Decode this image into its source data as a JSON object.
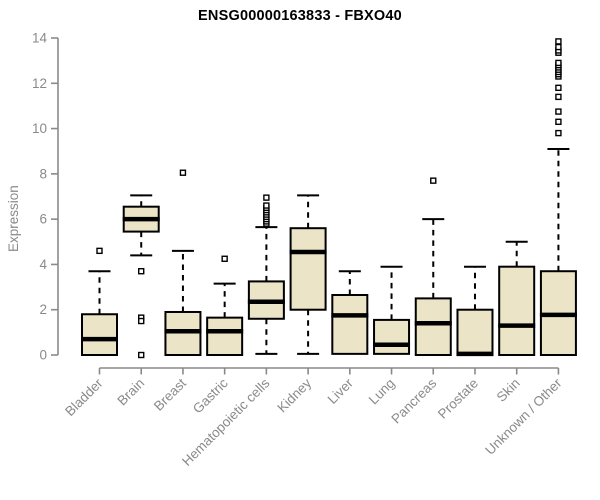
{
  "chart_data": {
    "type": "box",
    "title": "ENSG00000163833 - FBXO40",
    "ylabel": "Expression",
    "ylim": [
      0,
      14
    ],
    "yticks": [
      0,
      2,
      4,
      6,
      8,
      10,
      12,
      14
    ],
    "grid": false,
    "categories": [
      "Bladder",
      "Brain",
      "Breast",
      "Gastric",
      "Hematopoietic cells",
      "Kidney",
      "Liver",
      "Lung",
      "Pancreas",
      "Prostate",
      "Skin",
      "Unknown / Other"
    ],
    "boxes": [
      {
        "category": "Bladder",
        "whisker_low": 0,
        "q1": 0,
        "median": 0.7,
        "q3": 1.8,
        "whisker_high": 3.7,
        "outliers": [
          4.6
        ]
      },
      {
        "category": "Brain",
        "whisker_low": 4.4,
        "q1": 5.45,
        "median": 6.0,
        "q3": 6.55,
        "whisker_high": 7.05,
        "outliers": [
          3.7,
          1.65,
          1.5,
          0
        ]
      },
      {
        "category": "Breast",
        "whisker_low": 0,
        "q1": 0,
        "median": 1.05,
        "q3": 1.9,
        "whisker_high": 4.6,
        "outliers": [
          8.05
        ]
      },
      {
        "category": "Gastric",
        "whisker_low": 0,
        "q1": 0,
        "median": 1.05,
        "q3": 1.65,
        "whisker_high": 3.15,
        "outliers": [
          4.25
        ]
      },
      {
        "category": "Hematopoietic cells",
        "whisker_low": 0.05,
        "q1": 1.6,
        "median": 2.35,
        "q3": 3.25,
        "whisker_high": 5.65,
        "outliers": [
          5.8,
          5.9,
          6.0,
          6.1,
          6.2,
          6.3,
          6.4,
          6.5,
          6.6,
          6.95
        ]
      },
      {
        "category": "Kidney",
        "whisker_low": 0.05,
        "q1": 2.0,
        "median": 4.55,
        "q3": 5.6,
        "whisker_high": 7.05,
        "outliers": []
      },
      {
        "category": "Liver",
        "whisker_low": 0.05,
        "q1": 0.05,
        "median": 1.75,
        "q3": 2.65,
        "whisker_high": 3.7,
        "outliers": []
      },
      {
        "category": "Lung",
        "whisker_low": 0.05,
        "q1": 0.05,
        "median": 0.45,
        "q3": 1.55,
        "whisker_high": 3.9,
        "outliers": []
      },
      {
        "category": "Pancreas",
        "whisker_low": 0,
        "q1": 0,
        "median": 1.4,
        "q3": 2.5,
        "whisker_high": 6.0,
        "outliers": [
          7.7
        ]
      },
      {
        "category": "Prostate",
        "whisker_low": 0,
        "q1": 0,
        "median": 0.05,
        "q3": 2.0,
        "whisker_high": 3.9,
        "outliers": []
      },
      {
        "category": "Skin",
        "whisker_low": 0,
        "q1": 0,
        "median": 1.3,
        "q3": 3.9,
        "whisker_high": 5.0,
        "outliers": []
      },
      {
        "category": "Unknown / Other",
        "whisker_low": 0,
        "q1": 0,
        "median": 1.77,
        "q3": 3.7,
        "whisker_high": 9.1,
        "outliers": [
          9.8,
          10.3,
          10.75,
          11.4,
          11.8,
          12.3,
          12.4,
          12.5,
          12.6,
          12.7,
          12.8,
          12.9,
          13.35,
          13.45,
          13.6,
          13.85
        ]
      }
    ],
    "colors": {
      "box_fill": "#ece4c6",
      "box_border": "#000000",
      "median": "#000000",
      "whisker": "#000000",
      "outlier_border": "#000000",
      "outlier_fill": "#ffffff",
      "axis": "#8a8a8a",
      "tick_label": "#8a8a8a",
      "title": "#000000"
    },
    "legend": null
  }
}
